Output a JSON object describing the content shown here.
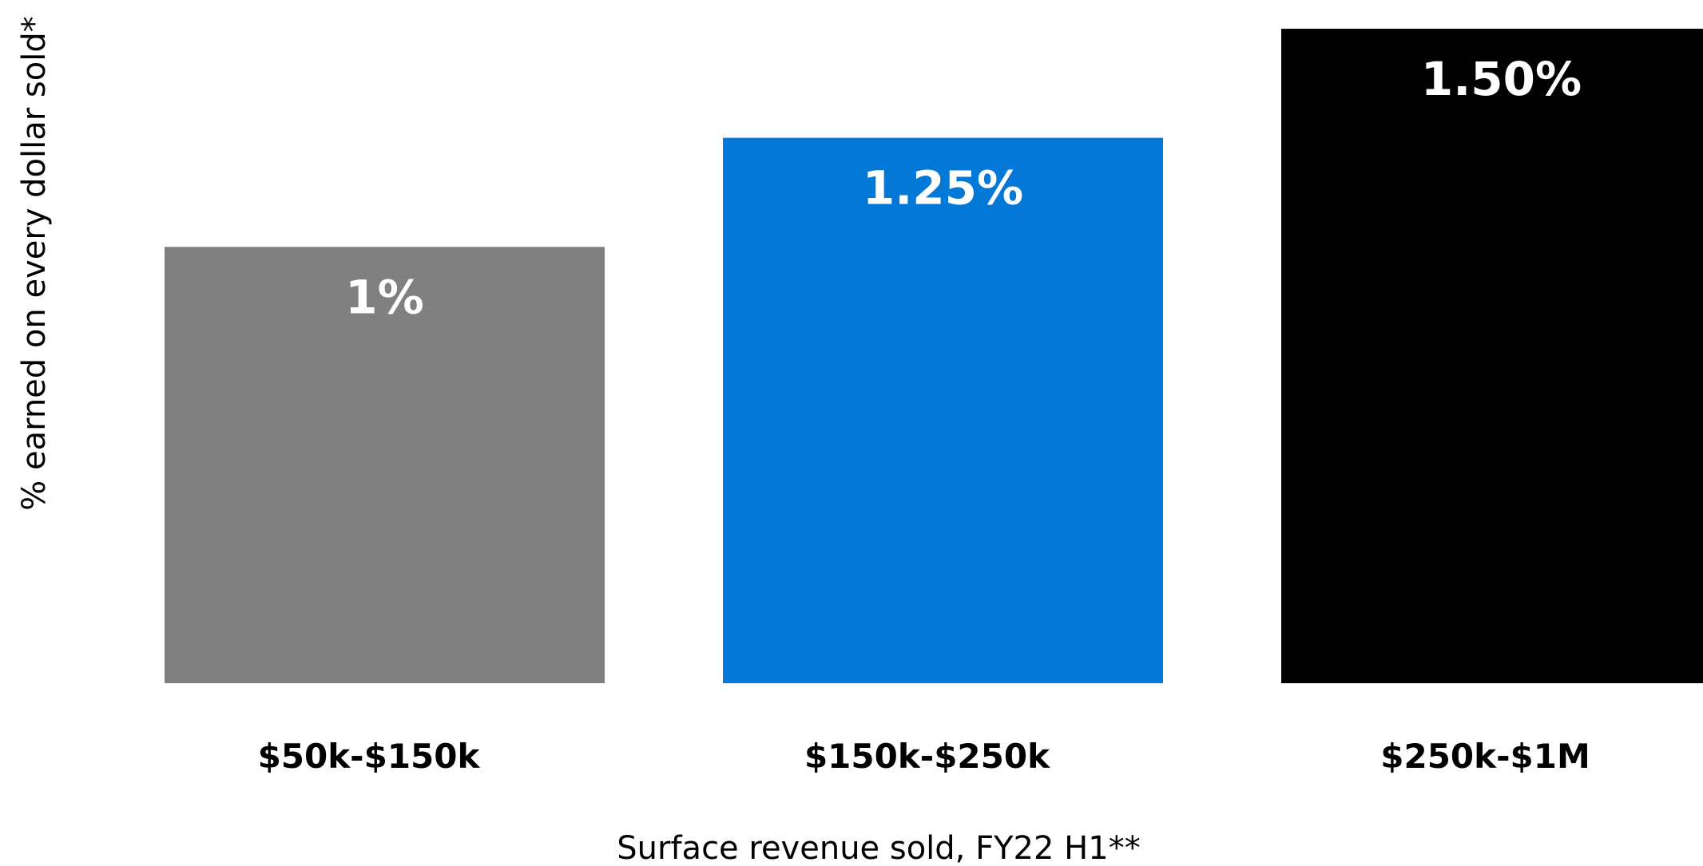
{
  "chart_data": {
    "type": "bar",
    "categories": [
      "$50k-$150k",
      "$150k-$250k",
      "$250k-$1M"
    ],
    "values": [
      1.0,
      1.25,
      1.5
    ],
    "data_labels": [
      "1%",
      "1.25%",
      "1.50%"
    ],
    "colors": [
      "#808080",
      "#0478D7",
      "#000000"
    ],
    "title": "",
    "xlabel": "Surface revenue sold, FY22 H1**",
    "ylabel": "% earned on every dollar sold*",
    "ylim": [
      0,
      1.5
    ],
    "grid": false,
    "legend": "none"
  }
}
